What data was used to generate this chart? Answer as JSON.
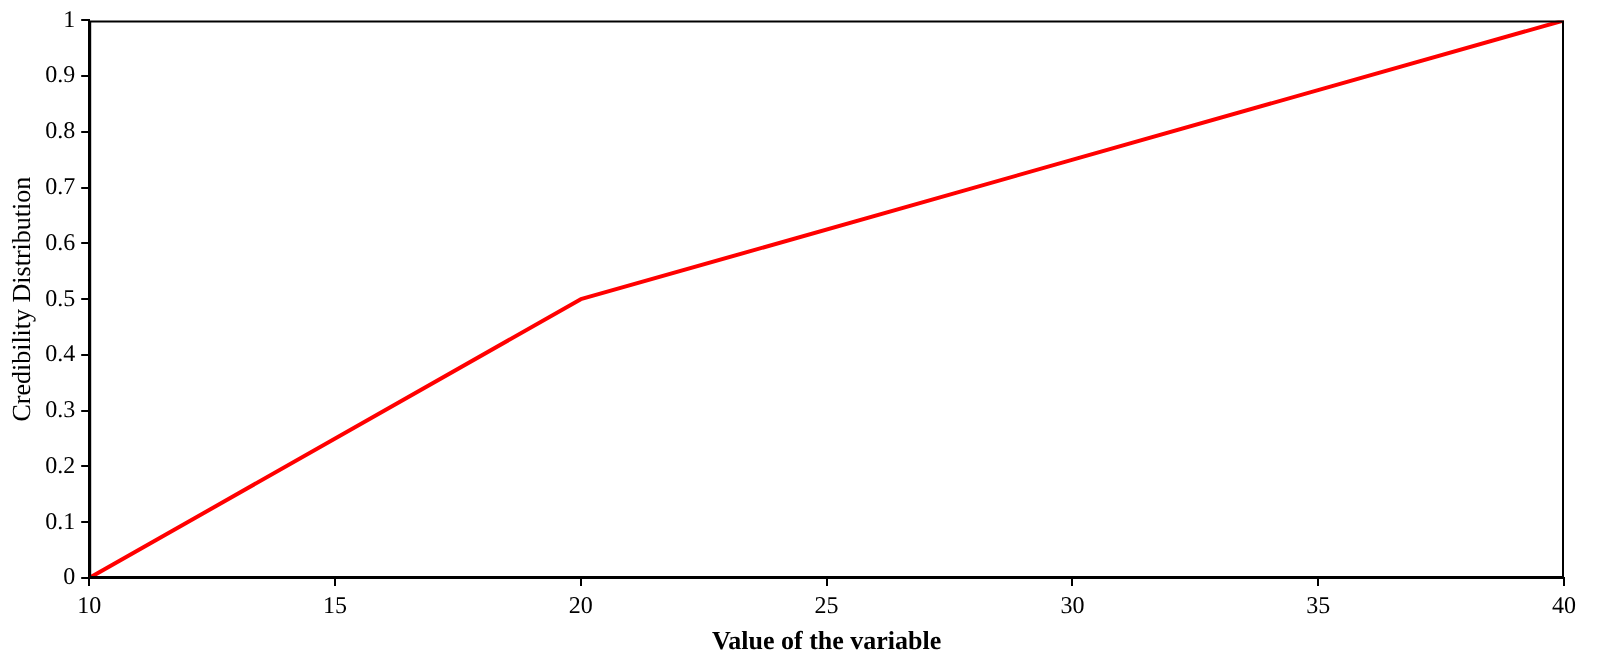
{
  "chart_data": {
    "type": "line",
    "xlabel": "Value of the variable",
    "ylabel": "Credibility Distribution",
    "x": [
      10,
      20,
      40
    ],
    "series": [
      {
        "color": "#ff0000",
        "values": [
          0,
          0.5,
          1
        ]
      }
    ],
    "xlim": [
      10,
      40
    ],
    "ylim": [
      0,
      1
    ],
    "xticks": [
      10,
      15,
      20,
      25,
      30,
      35,
      40
    ],
    "yticks": [
      0,
      0.1,
      0.2,
      0.3,
      0.4,
      0.5,
      0.6,
      0.7,
      0.8,
      0.9,
      1
    ],
    "legend": false
  }
}
